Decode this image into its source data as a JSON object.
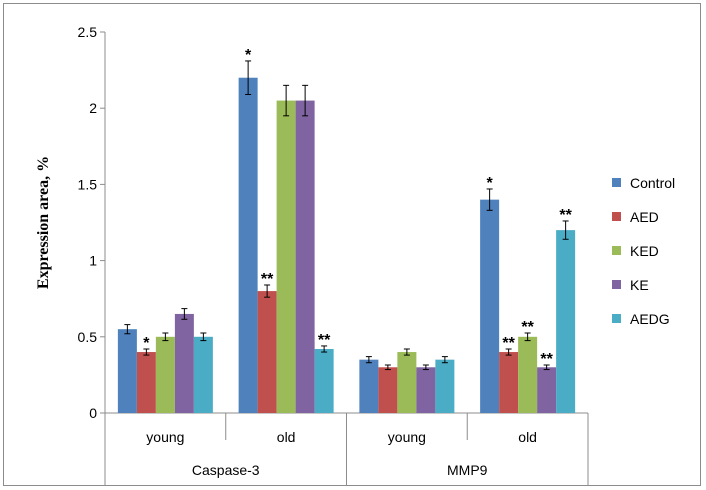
{
  "chart_data": {
    "type": "bar",
    "ylabel": "Expression area, %",
    "ylim": [
      0,
      2.5
    ],
    "yticks": [
      "0",
      "0.5",
      "1",
      "1.5",
      "2",
      "2.5"
    ],
    "ytick_values": [
      0,
      0.5,
      1,
      1.5,
      2,
      2.5
    ],
    "groups": [
      {
        "label": "Caspase-3",
        "subcategories": [
          "young",
          "old"
        ]
      },
      {
        "label": "MMP9",
        "subcategories": [
          "young",
          "old"
        ]
      }
    ],
    "categories": [
      "young",
      "old",
      "young",
      "old"
    ],
    "series": [
      {
        "name": "Control",
        "color": "#4f81bd",
        "values": [
          0.55,
          2.2,
          0.35,
          1.4
        ],
        "errors": [
          0.03,
          0.11,
          0.02,
          0.07
        ],
        "marks": [
          "",
          "*",
          "",
          "*"
        ]
      },
      {
        "name": "AED",
        "color": "#c0504d",
        "values": [
          0.4,
          0.8,
          0.3,
          0.4
        ],
        "errors": [
          0.02,
          0.04,
          0.015,
          0.02
        ],
        "marks": [
          "*",
          "**",
          "",
          "**"
        ]
      },
      {
        "name": "KED",
        "color": "#9bbb59",
        "values": [
          0.5,
          2.05,
          0.4,
          0.5
        ],
        "errors": [
          0.025,
          0.1,
          0.02,
          0.025
        ],
        "marks": [
          "",
          "",
          "",
          "**"
        ]
      },
      {
        "name": "KE",
        "color": "#8064a2",
        "values": [
          0.65,
          2.05,
          0.3,
          0.3
        ],
        "errors": [
          0.035,
          0.1,
          0.015,
          0.015
        ],
        "marks": [
          "",
          "",
          "",
          "**"
        ]
      },
      {
        "name": "AEDG",
        "color": "#4bacc6",
        "values": [
          0.5,
          0.42,
          0.35,
          1.2
        ],
        "errors": [
          0.025,
          0.02,
          0.02,
          0.06
        ],
        "marks": [
          "",
          "**",
          "",
          "**"
        ]
      }
    ],
    "legend_position": "right",
    "grid": false
  }
}
